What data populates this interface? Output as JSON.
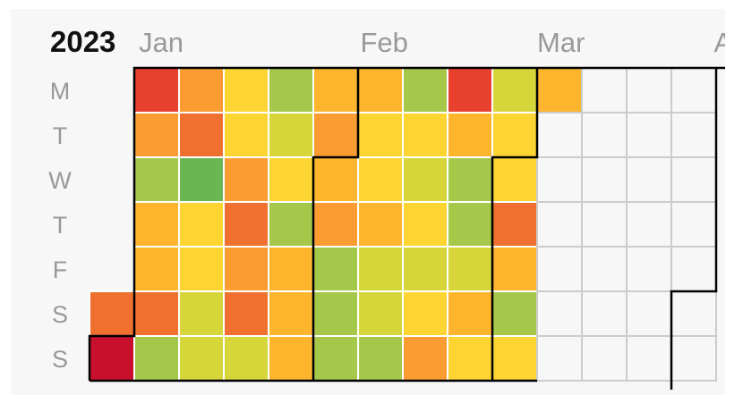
{
  "chart_data": {
    "type": "heatmap",
    "title": "2023",
    "year": 2023,
    "day_labels": [
      "M",
      "T",
      "W",
      "T",
      "F",
      "S",
      "S"
    ],
    "month_labels": [
      "Jan",
      "Feb",
      "Mar",
      "A"
    ],
    "first_day": "2022-12-31",
    "color_scale": [
      "#c8102e",
      "#e8412f",
      "#f0712f",
      "#fa9c32",
      "#fdb52e",
      "#fcd532",
      "#d6d63a",
      "#a6c84a",
      "#6ab652"
    ],
    "empty_color": "#f7f7f7",
    "grid_color": "#cccccc",
    "weeks": [
      [
        null,
        null,
        null,
        null,
        null,
        2,
        0
      ],
      [
        1,
        3,
        7,
        4,
        4,
        2,
        7
      ],
      [
        3,
        2,
        8,
        5,
        5,
        6,
        6
      ],
      [
        5,
        5,
        3,
        2,
        3,
        2,
        6
      ],
      [
        7,
        6,
        5,
        7,
        4,
        4,
        4
      ],
      [
        4,
        3,
        4,
        3,
        7,
        7,
        7
      ],
      [
        4,
        5,
        5,
        4,
        6,
        6,
        7
      ],
      [
        7,
        5,
        6,
        5,
        6,
        5,
        3
      ],
      [
        1,
        4,
        7,
        7,
        6,
        4,
        5
      ],
      [
        6,
        5,
        5,
        2,
        4,
        7,
        5
      ],
      [
        4,
        null,
        null,
        null,
        null,
        null,
        null
      ],
      [
        null,
        null,
        null,
        null,
        null,
        null,
        null
      ],
      [
        null,
        null,
        null,
        null,
        null,
        null,
        null
      ],
      [
        null,
        null,
        null,
        null,
        null,
        null,
        null
      ]
    ]
  }
}
